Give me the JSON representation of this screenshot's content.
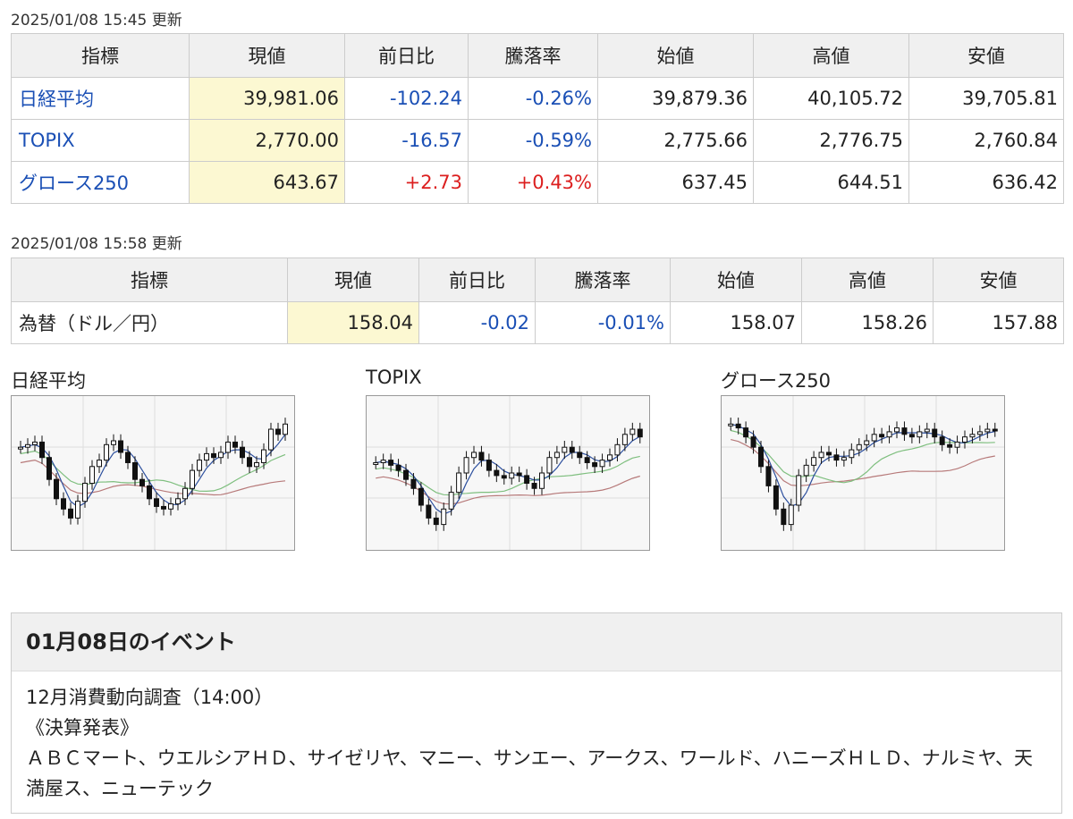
{
  "market": {
    "updated": "2025/01/08 15:45 更新",
    "headers": [
      "指標",
      "現値",
      "前日比",
      "騰落率",
      "始値",
      "高値",
      "安値"
    ],
    "rows": [
      {
        "name": "日経平均",
        "current": "39,981.06",
        "change": "-102.24",
        "rate": "-0.26%",
        "open": "39,879.36",
        "high": "40,105.72",
        "low": "39,705.81",
        "dir": "neg"
      },
      {
        "name": "TOPIX",
        "current": "2,770.00",
        "change": "-16.57",
        "rate": "-0.59%",
        "open": "2,775.66",
        "high": "2,776.75",
        "low": "2,760.84",
        "dir": "neg"
      },
      {
        "name": "グロース250",
        "current": "643.67",
        "change": "+2.73",
        "rate": "+0.43%",
        "open": "637.45",
        "high": "644.51",
        "low": "636.42",
        "dir": "pos"
      }
    ]
  },
  "fx": {
    "updated": "2025/01/08 15:58 更新",
    "headers": [
      "指標",
      "現値",
      "前日比",
      "騰落率",
      "始値",
      "高値",
      "安値"
    ],
    "row": {
      "name": "為替（ドル／円）",
      "current": "158.04",
      "change": "-0.02",
      "rate": "-0.01%",
      "open": "158.07",
      "high": "158.26",
      "low": "157.88",
      "dir": "neg"
    }
  },
  "charts": [
    {
      "title": "日経平均",
      "closes": [
        0.7,
        0.72,
        0.74,
        0.62,
        0.45,
        0.3,
        0.22,
        0.15,
        0.28,
        0.42,
        0.55,
        0.6,
        0.72,
        0.75,
        0.66,
        0.58,
        0.45,
        0.4,
        0.3,
        0.24,
        0.22,
        0.26,
        0.3,
        0.38,
        0.52,
        0.6,
        0.65,
        0.62,
        0.66,
        0.74,
        0.7,
        0.62,
        0.55,
        0.58,
        0.68,
        0.84,
        0.8,
        0.88
      ]
    },
    {
      "title": "TOPIX",
      "closes": [
        0.58,
        0.6,
        0.56,
        0.52,
        0.45,
        0.38,
        0.25,
        0.15,
        0.1,
        0.22,
        0.35,
        0.5,
        0.62,
        0.66,
        0.6,
        0.52,
        0.48,
        0.46,
        0.5,
        0.48,
        0.42,
        0.38,
        0.5,
        0.62,
        0.66,
        0.7,
        0.66,
        0.62,
        0.58,
        0.55,
        0.6,
        0.64,
        0.72,
        0.8,
        0.84,
        0.78
      ]
    },
    {
      "title": "グロース250",
      "closes": [
        0.88,
        0.85,
        0.78,
        0.7,
        0.55,
        0.4,
        0.22,
        0.1,
        0.25,
        0.48,
        0.56,
        0.62,
        0.66,
        0.64,
        0.6,
        0.62,
        0.68,
        0.72,
        0.75,
        0.8,
        0.78,
        0.82,
        0.85,
        0.8,
        0.78,
        0.82,
        0.84,
        0.78,
        0.72,
        0.7,
        0.74,
        0.78,
        0.8,
        0.82,
        0.84,
        0.83
      ]
    }
  ],
  "event": {
    "title": "01月08日のイベント",
    "lines": [
      "12月消費動向調査（14:00）",
      "《決算発表》",
      "ＡＢＣマート、ウエルシアＨＤ、サイゼリヤ、マニー、サンエー、アークス、ワールド、ハニーズＨＬＤ、ナルミヤ、天満屋ス、ニューテック"
    ]
  },
  "colors": {
    "negative": "#1a4fb5",
    "positive": "#dc1f1f",
    "highlight": "#fcf8d2",
    "header_bg": "#f0f0f0"
  }
}
